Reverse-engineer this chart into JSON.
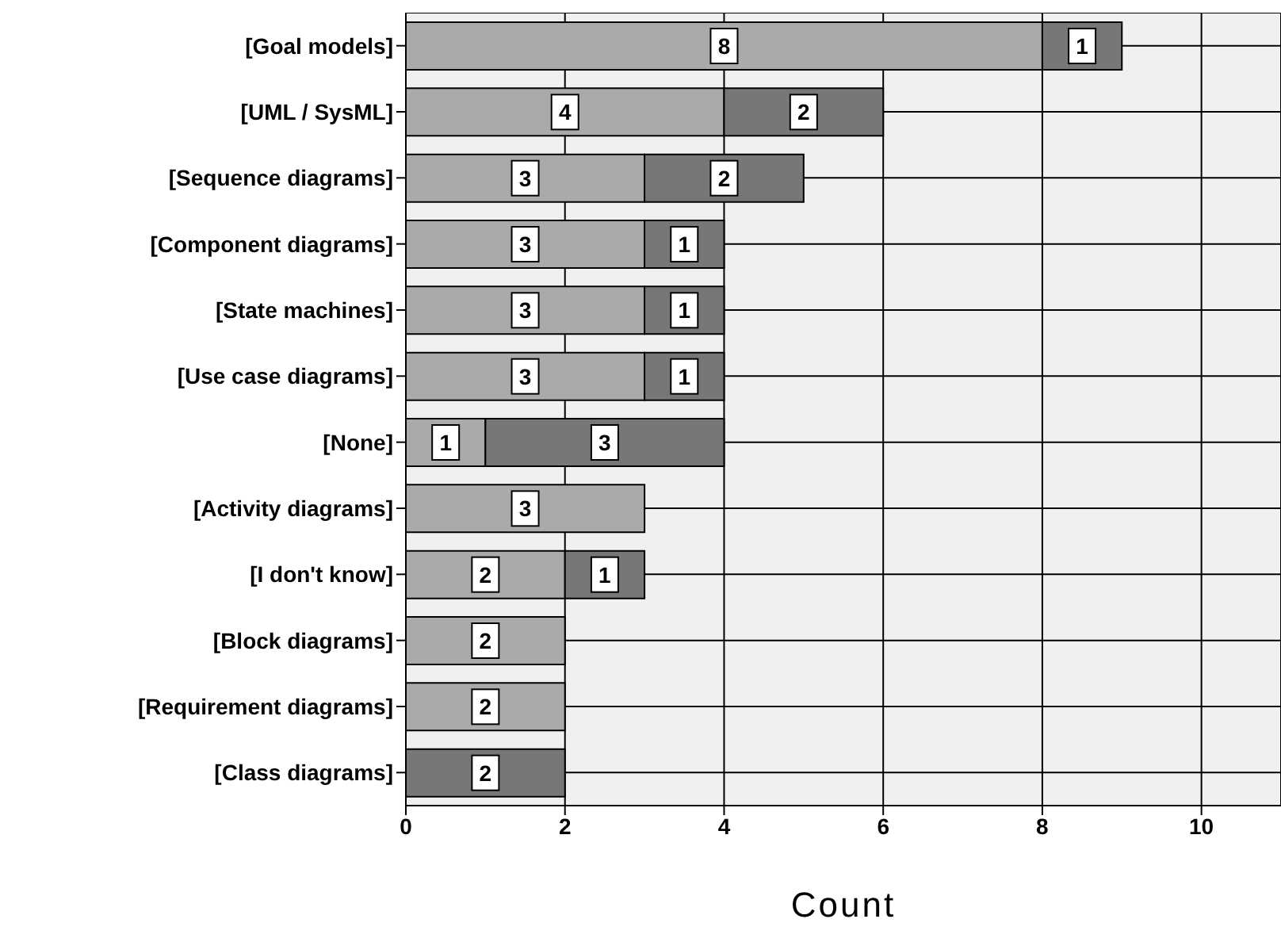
{
  "chart_data": {
    "type": "bar",
    "orientation": "horizontal",
    "stacked": true,
    "xlabel": "Count",
    "categories": [
      "[Goal models]",
      "[UML / SysML]",
      "[Sequence diagrams]",
      "[Component diagrams]",
      "[State machines]",
      "[Use case diagrams]",
      "[None]",
      "[Activity diagrams]",
      "[I don't know]",
      "[Block diagrams]",
      "[Requirement diagrams]",
      "[Class diagrams]"
    ],
    "series": [
      {
        "color": "#aaaaaa",
        "values": [
          8,
          4,
          3,
          3,
          3,
          3,
          1,
          3,
          2,
          2,
          2,
          null
        ]
      },
      {
        "color": "#777777",
        "values": [
          1,
          2,
          2,
          1,
          1,
          1,
          3,
          null,
          1,
          null,
          null,
          2
        ]
      }
    ],
    "xlim": [
      0,
      11
    ],
    "xticks": [
      0,
      2,
      4,
      6,
      8,
      10
    ],
    "grid": true,
    "data_labels": true,
    "legend": false
  }
}
